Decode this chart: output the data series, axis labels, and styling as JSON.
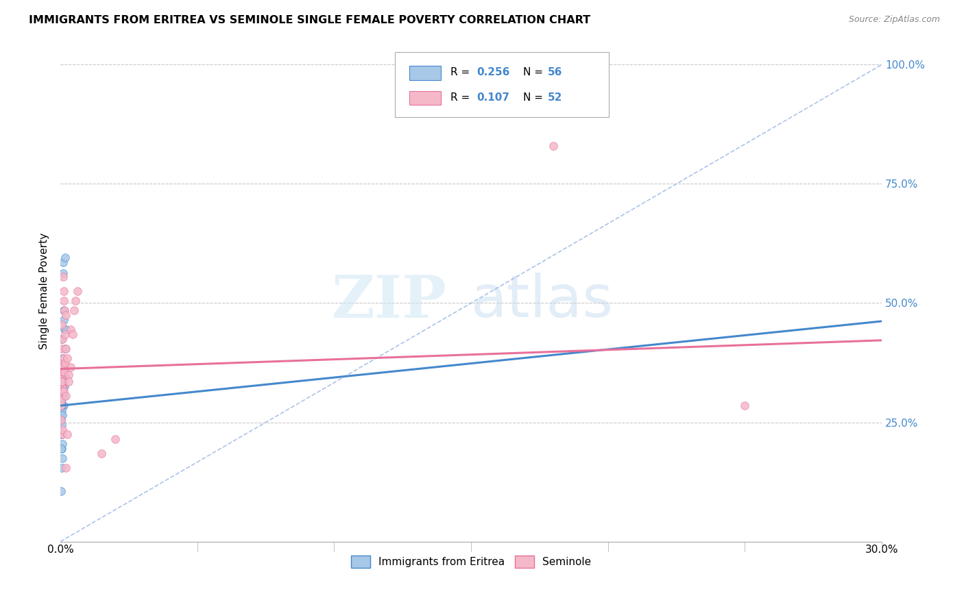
{
  "title": "IMMIGRANTS FROM ERITREA VS SEMINOLE SINGLE FEMALE POVERTY CORRELATION CHART",
  "source": "Source: ZipAtlas.com",
  "ylabel": "Single Female Poverty",
  "ytick_labels": [
    "",
    "25.0%",
    "50.0%",
    "75.0%",
    "100.0%"
  ],
  "ytick_vals": [
    0.0,
    0.25,
    0.5,
    0.75,
    1.0
  ],
  "xmin": 0.0,
  "xmax": 0.3,
  "ymin": 0.0,
  "ymax": 1.05,
  "legend_R1": "0.256",
  "legend_N1": "56",
  "legend_R2": "0.107",
  "legend_N2": "52",
  "legend_label1": "Immigrants from Eritrea",
  "legend_label2": "Seminole",
  "color_blue": "#a8c8e8",
  "color_pink": "#f5b8c8",
  "color_blue_line": "#4488cc",
  "color_pink_line": "#e8709a",
  "color_dashed": "#88aadd",
  "watermark_zip": "ZIP",
  "watermark_atlas": "atlas",
  "blue_line_x0": 0.0,
  "blue_line_y0": 0.285,
  "blue_line_x1": 0.3,
  "blue_line_y1": 0.462,
  "pink_line_x0": 0.0,
  "pink_line_y0": 0.362,
  "pink_line_x1": 0.3,
  "pink_line_y1": 0.422,
  "dashed_line_x0": 0.0,
  "dashed_line_y0": 0.0,
  "dashed_line_x1": 0.3,
  "dashed_line_y1": 1.0,
  "blue_dots_x": [
    0.0003,
    0.0005,
    0.0007,
    0.0003,
    0.001,
    0.0012,
    0.0005,
    0.0008,
    0.0015,
    0.0018,
    0.0003,
    0.0006,
    0.0008,
    0.0011,
    0.0005,
    0.0003,
    0.0007,
    0.0012,
    0.0005,
    0.001,
    0.0003,
    0.0005,
    0.0003,
    0.0008,
    0.0005,
    0.0003,
    0.001,
    0.0008,
    0.0005,
    0.0013,
    0.0015,
    0.0018,
    0.002,
    0.0005,
    0.0008,
    0.0003,
    0.001,
    0.0005,
    0.0007,
    0.0003,
    0.0015,
    0.0013,
    0.0005,
    0.0003,
    0.0008,
    0.0005,
    0.001,
    0.0003,
    0.0005,
    0.0008,
    0.0018,
    0.001,
    0.0005,
    0.0008,
    0.0003,
    0.0005
  ],
  "blue_dots_y": [
    0.305,
    0.355,
    0.285,
    0.325,
    0.585,
    0.485,
    0.425,
    0.385,
    0.445,
    0.405,
    0.305,
    0.335,
    0.315,
    0.465,
    0.325,
    0.27,
    0.285,
    0.355,
    0.305,
    0.325,
    0.255,
    0.29,
    0.265,
    0.305,
    0.285,
    0.225,
    0.335,
    0.305,
    0.195,
    0.285,
    0.325,
    0.345,
    0.445,
    0.305,
    0.205,
    0.275,
    0.335,
    0.155,
    0.175,
    0.105,
    0.365,
    0.305,
    0.275,
    0.295,
    0.315,
    0.245,
    0.355,
    0.225,
    0.285,
    0.265,
    0.595,
    0.562,
    0.345,
    0.315,
    0.195,
    0.225
  ],
  "pink_dots_x": [
    0.0003,
    0.0005,
    0.0007,
    0.0003,
    0.001,
    0.0012,
    0.0005,
    0.0008,
    0.0015,
    0.0018,
    0.0003,
    0.0006,
    0.0008,
    0.0011,
    0.0005,
    0.0003,
    0.0007,
    0.0012,
    0.0005,
    0.001,
    0.0003,
    0.0005,
    0.0003,
    0.0008,
    0.0005,
    0.0003,
    0.001,
    0.0008,
    0.0005,
    0.0013,
    0.0015,
    0.0018,
    0.002,
    0.0005,
    0.0008,
    0.002,
    0.0025,
    0.003,
    0.0037,
    0.0045,
    0.005,
    0.0055,
    0.0062,
    0.002,
    0.003,
    0.0037,
    0.0025,
    0.002,
    0.015,
    0.02,
    0.25,
    0.18
  ],
  "pink_dots_y": [
    0.355,
    0.405,
    0.325,
    0.365,
    0.555,
    0.525,
    0.455,
    0.425,
    0.485,
    0.435,
    0.335,
    0.375,
    0.345,
    0.505,
    0.365,
    0.305,
    0.315,
    0.385,
    0.335,
    0.355,
    0.285,
    0.325,
    0.295,
    0.335,
    0.315,
    0.255,
    0.365,
    0.335,
    0.225,
    0.315,
    0.355,
    0.375,
    0.475,
    0.335,
    0.235,
    0.405,
    0.385,
    0.35,
    0.445,
    0.435,
    0.485,
    0.505,
    0.525,
    0.305,
    0.335,
    0.365,
    0.225,
    0.155,
    0.185,
    0.215,
    0.285,
    0.83
  ]
}
